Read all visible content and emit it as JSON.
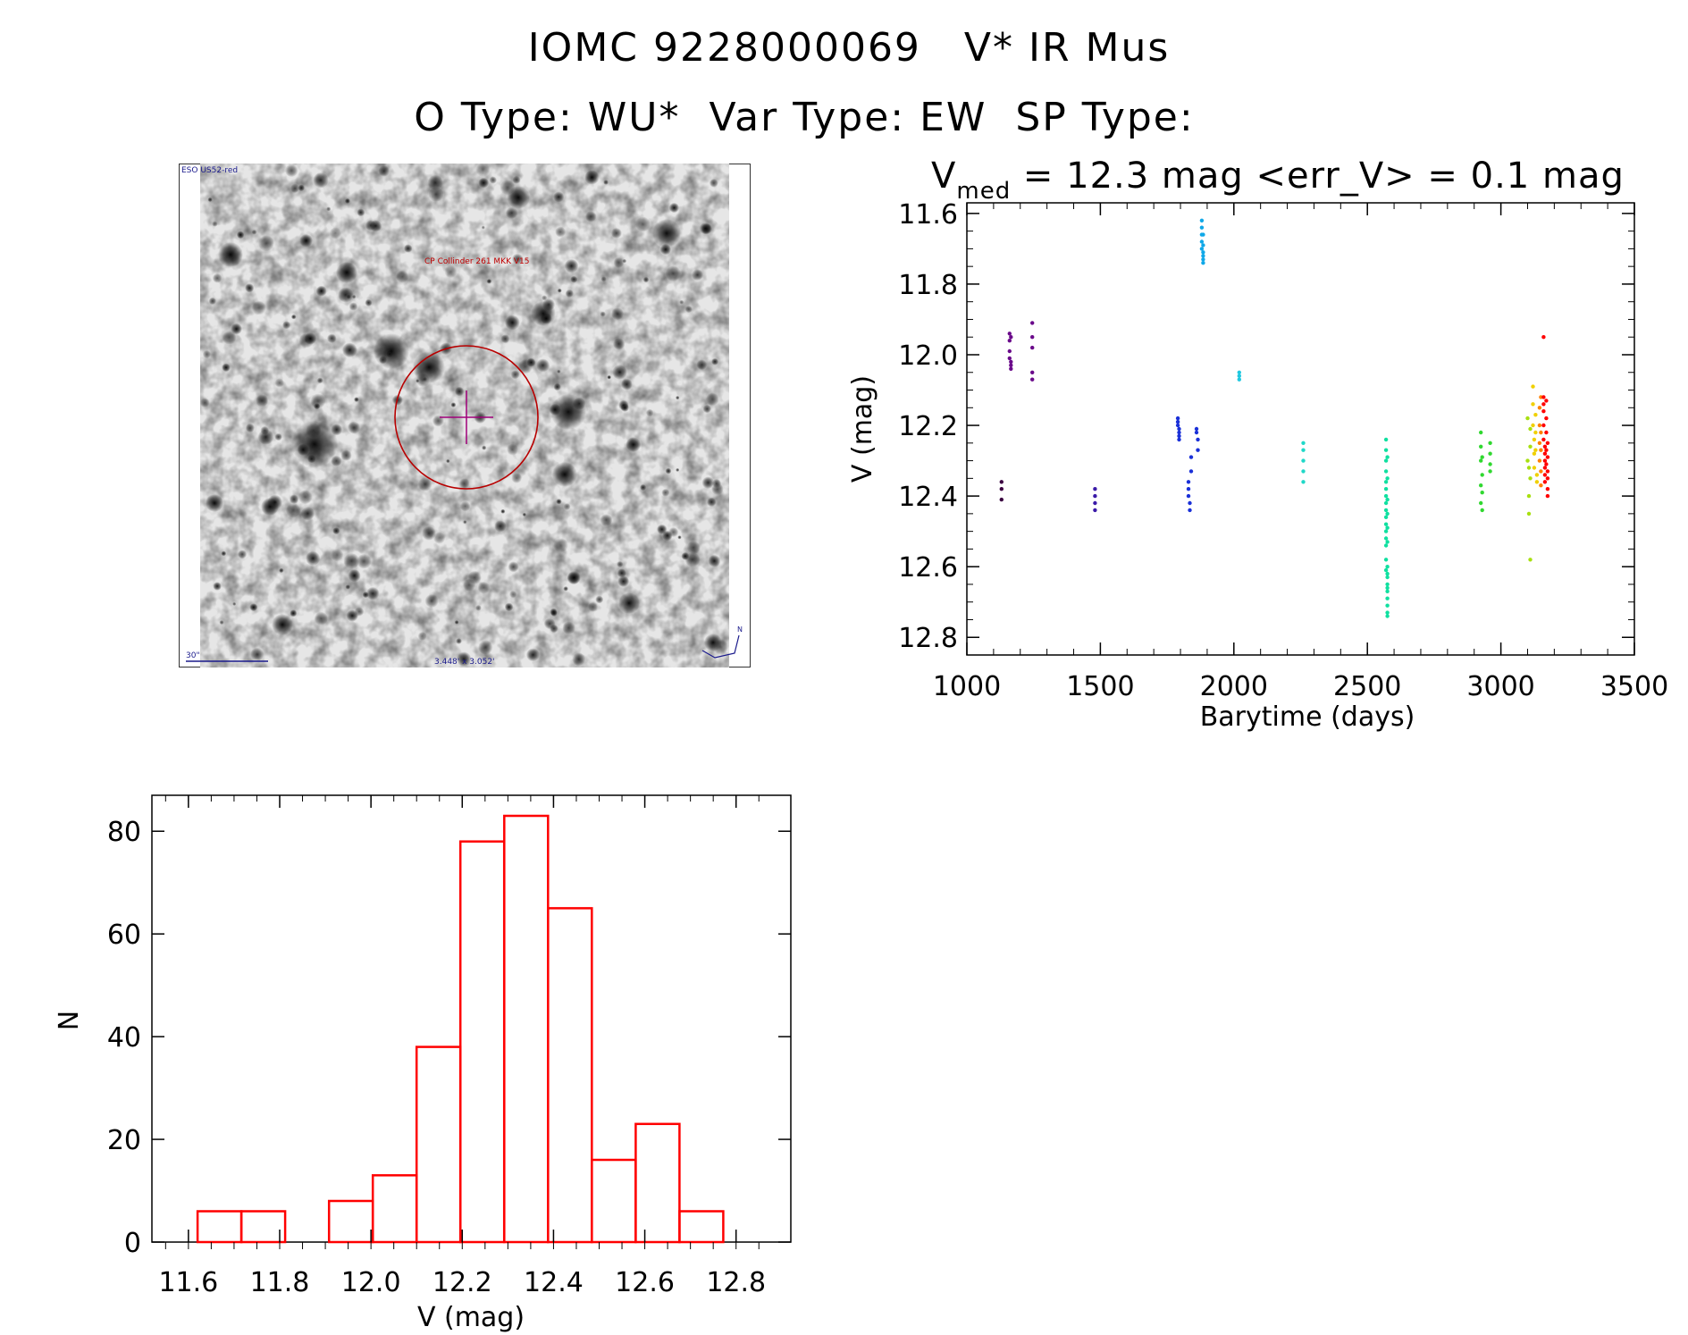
{
  "header": {
    "line1": "IOMC 9228000069   V* IR Mus",
    "line2": "O Type: WU*  Var Type: EW  SP Type:"
  },
  "finder": {
    "survey_label": "ESO US52-red",
    "object_label": "CP Collinder 261 MKK V15",
    "scale_label": "30\"",
    "size_label": "3.448' x 3.052'",
    "north_label": "N"
  },
  "lightcurve": {
    "title_prefix": "V",
    "title_sub": "med",
    "title_rest": " = 12.3 mag <err_V> = 0.1 mag"
  },
  "colors": {
    "hist_bar": "#ff0000",
    "circle": "#b80000",
    "label_blue": "#1a1a8c"
  },
  "chart_data": [
    {
      "type": "scatter",
      "xlabel": "Barytime (days)",
      "ylabel": "V (mag)",
      "xlim": [
        1000,
        3500
      ],
      "ylim": [
        12.85,
        11.57
      ],
      "xticks": [
        1000,
        1500,
        2000,
        2500,
        3000,
        3500
      ],
      "yticks": [
        11.6,
        11.8,
        12.0,
        12.2,
        12.4,
        12.6,
        12.8
      ],
      "series": [
        {
          "name": "g1",
          "color": "#3a0040",
          "x": [
            1130,
            1130,
            1130
          ],
          "values": [
            12.36,
            12.38,
            12.41
          ]
        },
        {
          "name": "g2",
          "color": "#6a0a8a",
          "x": [
            1160,
            1160,
            1160,
            1160,
            1165,
            1165,
            1165,
            1165
          ],
          "values": [
            11.94,
            11.96,
            11.99,
            12.01,
            12.02,
            12.03,
            12.04,
            11.95
          ]
        },
        {
          "name": "g3",
          "color": "#6a0a8a",
          "x": [
            1245,
            1245,
            1245,
            1245,
            1245
          ],
          "values": [
            11.91,
            11.95,
            11.98,
            12.05,
            12.07
          ]
        },
        {
          "name": "g4",
          "color": "#3a1aa8",
          "x": [
            1480,
            1480,
            1480,
            1480
          ],
          "values": [
            12.38,
            12.4,
            12.42,
            12.44
          ]
        },
        {
          "name": "g5",
          "color": "#1a30d8",
          "x": [
            1790,
            1790,
            1790,
            1795,
            1795,
            1795,
            1795,
            1830,
            1830,
            1830,
            1835,
            1835,
            1840,
            1840,
            1860,
            1860,
            1865,
            1865
          ],
          "values": [
            12.18,
            12.19,
            12.2,
            12.21,
            12.22,
            12.23,
            12.24,
            12.36,
            12.38,
            12.4,
            12.42,
            12.44,
            12.29,
            12.33,
            12.21,
            12.22,
            12.24,
            12.27
          ]
        },
        {
          "name": "g6",
          "color": "#10a8e8",
          "x": [
            1880,
            1880,
            1880,
            1880,
            1880,
            1885,
            1885,
            1885,
            1885,
            1885,
            1885
          ],
          "values": [
            11.62,
            11.64,
            11.66,
            11.68,
            11.7,
            11.71,
            11.72,
            11.73,
            11.74,
            11.66,
            11.69
          ]
        },
        {
          "name": "g7",
          "color": "#20c8e0",
          "x": [
            2020,
            2020,
            2020
          ],
          "values": [
            12.05,
            12.06,
            12.07
          ]
        },
        {
          "name": "g8",
          "color": "#20d8c8",
          "x": [
            2260,
            2260,
            2260,
            2260,
            2260
          ],
          "values": [
            12.25,
            12.27,
            12.3,
            12.33,
            12.36
          ]
        },
        {
          "name": "g9",
          "color": "#10e0a0",
          "x": [
            2570,
            2570,
            2570,
            2570,
            2570,
            2570,
            2570,
            2570,
            2570,
            2570,
            2570,
            2570,
            2570,
            2570,
            2570,
            2570,
            2575,
            2575,
            2575,
            2575,
            2575,
            2575,
            2575,
            2575,
            2575,
            2575,
            2575,
            2575,
            2575,
            2575,
            2575,
            2575
          ],
          "values": [
            12.24,
            12.27,
            12.3,
            12.33,
            12.36,
            12.38,
            12.4,
            12.42,
            12.44,
            12.46,
            12.48,
            12.5,
            12.52,
            12.54,
            12.58,
            12.61,
            12.63,
            12.65,
            12.67,
            12.69,
            12.71,
            12.73,
            12.74,
            12.29,
            12.35,
            12.41,
            12.45,
            12.49,
            12.53,
            12.6,
            12.62,
            12.66
          ]
        },
        {
          "name": "g10",
          "color": "#30d830",
          "x": [
            2925,
            2925,
            2925,
            2925,
            2925,
            2930,
            2930,
            2930,
            2930,
            2960,
            2960,
            2960,
            2960
          ],
          "values": [
            12.22,
            12.26,
            12.3,
            12.37,
            12.42,
            12.39,
            12.44,
            12.29,
            12.34,
            12.25,
            12.28,
            12.31,
            12.33
          ]
        },
        {
          "name": "g11",
          "color": "#a8e010",
          "x": [
            3100,
            3100,
            3105,
            3105,
            3105,
            3110,
            3110,
            3110,
            3110
          ],
          "values": [
            12.18,
            12.3,
            12.32,
            12.4,
            12.45,
            12.21,
            12.26,
            12.35,
            12.58
          ]
        },
        {
          "name": "g12",
          "color": "#f0d000",
          "x": [
            3120,
            3120,
            3120,
            3125,
            3125,
            3125,
            3130,
            3130,
            3130,
            3135,
            3135
          ],
          "values": [
            12.09,
            12.14,
            12.2,
            12.24,
            12.28,
            12.32,
            12.17,
            12.22,
            12.27,
            12.34,
            12.36
          ]
        },
        {
          "name": "g13",
          "color": "#ff8000",
          "x": [
            3145,
            3145,
            3145,
            3145,
            3150,
            3150,
            3150,
            3150,
            3150
          ],
          "values": [
            12.15,
            12.2,
            12.25,
            12.3,
            12.12,
            12.27,
            12.33,
            12.37,
            12.22
          ]
        },
        {
          "name": "g14",
          "color": "#ff0000",
          "x": [
            3160,
            3160,
            3160,
            3160,
            3160,
            3160,
            3165,
            3165,
            3165,
            3165,
            3165,
            3165,
            3170,
            3170,
            3170,
            3170,
            3170,
            3175,
            3175,
            3175,
            3175,
            3175,
            3175
          ],
          "values": [
            11.95,
            12.12,
            12.14,
            12.16,
            12.2,
            12.24,
            12.26,
            12.28,
            12.3,
            12.32,
            12.34,
            12.36,
            12.13,
            12.18,
            12.22,
            12.27,
            12.31,
            12.25,
            12.29,
            12.33,
            12.35,
            12.38,
            12.4
          ]
        }
      ]
    },
    {
      "type": "bar",
      "title": "",
      "xlabel": "V (mag)",
      "ylabel": "N",
      "xlim": [
        11.52,
        12.92
      ],
      "ylim": [
        0,
        87
      ],
      "xticks": [
        11.6,
        11.8,
        12.0,
        12.2,
        12.4,
        12.6,
        12.8
      ],
      "yticks": [
        0,
        20,
        40,
        60,
        80
      ],
      "bin_edges": [
        11.62,
        11.716,
        11.812,
        11.908,
        12.004,
        12.1,
        12.196,
        12.292,
        12.388,
        12.484,
        12.58,
        12.676,
        12.772
      ],
      "values": [
        6,
        6,
        0,
        8,
        13,
        38,
        78,
        83,
        65,
        16,
        23,
        6
      ]
    }
  ]
}
